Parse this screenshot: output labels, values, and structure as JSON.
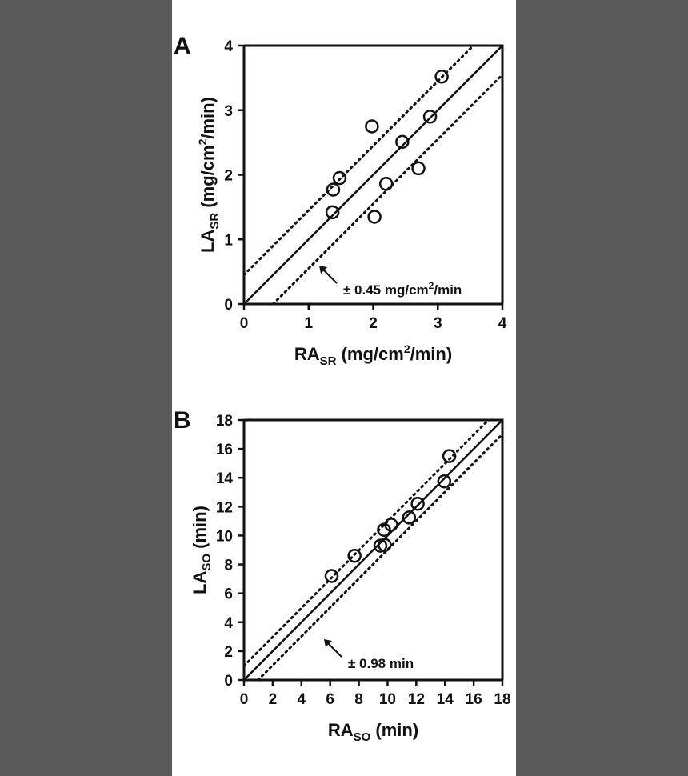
{
  "chart_data": [
    {
      "type": "scatter",
      "panel_label": "A",
      "xlabel": {
        "main": "RA",
        "sub": "SR",
        "unit_before": " (mg/cm",
        "sup": "2",
        "unit_after": "/min)"
      },
      "ylabel": {
        "main": "LA",
        "sub": "SR",
        "unit_before": " (mg/cm",
        "sup": "2",
        "unit_after": "/min)"
      },
      "xlim": [
        0,
        4
      ],
      "ylim": [
        0,
        4
      ],
      "xticks": [
        0,
        1,
        2,
        3,
        4
      ],
      "yticks": [
        0,
        1,
        2,
        3,
        4
      ],
      "identity_line": true,
      "limit_offset": 0.45,
      "annotation": {
        "prefix": "± 0.45 mg/cm",
        "sup": "2",
        "suffix": "/min"
      },
      "x": [
        1.37,
        1.38,
        1.48,
        1.98,
        2.02,
        2.2,
        2.45,
        2.7,
        2.88,
        3.06
      ],
      "y": [
        1.42,
        1.77,
        1.95,
        2.75,
        1.35,
        1.86,
        2.51,
        2.1,
        2.9,
        3.52
      ]
    },
    {
      "type": "scatter",
      "panel_label": "B",
      "xlabel": {
        "main": "RA",
        "sub": "SO",
        "unit_before": " (min)",
        "sup": "",
        "unit_after": ""
      },
      "ylabel": {
        "main": "LA",
        "sub": "SO",
        "unit_before": " (min)",
        "sup": "",
        "unit_after": ""
      },
      "xlim": [
        0,
        18
      ],
      "ylim": [
        0,
        18
      ],
      "xticks": [
        0,
        2,
        4,
        6,
        8,
        10,
        12,
        14,
        16,
        18
      ],
      "yticks": [
        0,
        2,
        4,
        6,
        8,
        10,
        12,
        14,
        16,
        18
      ],
      "identity_line": true,
      "limit_offset": 0.98,
      "annotation": {
        "prefix": "± 0.98 min",
        "sup": "",
        "suffix": ""
      },
      "x": [
        6.1,
        7.7,
        9.5,
        9.75,
        9.8,
        10.25,
        11.5,
        12.1,
        13.95,
        14.3
      ],
      "y": [
        7.2,
        8.6,
        9.3,
        10.4,
        9.35,
        10.75,
        11.25,
        12.2,
        13.75,
        15.5
      ]
    }
  ]
}
